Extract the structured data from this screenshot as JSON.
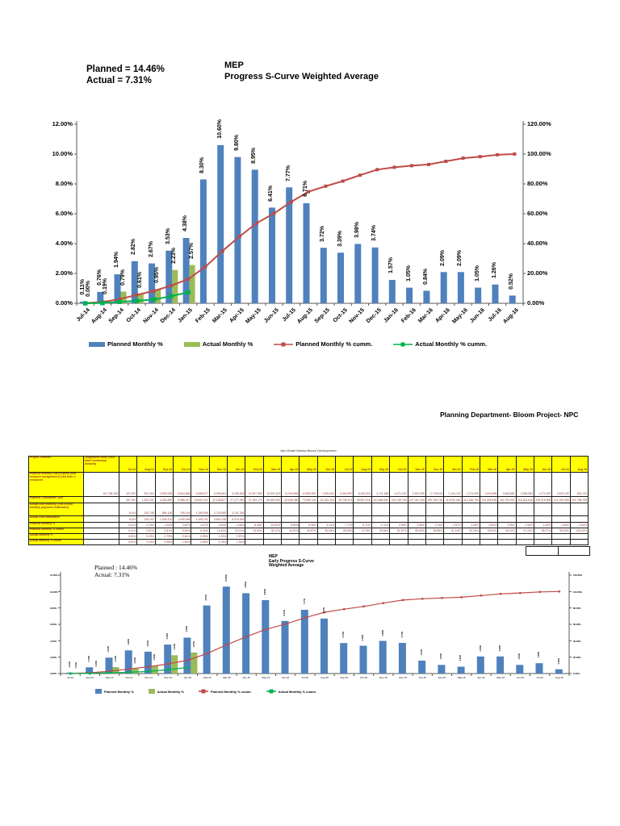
{
  "page": {
    "planned_note": "Planned = 14.46%",
    "actual_note": "Actual = 7.31%",
    "title_line1": "MEP",
    "title_line2": "Progress S-Curve Weighted Average",
    "department_note": "Planning Department- Bloom Project- NPC"
  },
  "colors": {
    "planned_bar": "#4F81BD",
    "actual_bar": "#9BBB59",
    "planned_cumm_line": "#BE4B48",
    "actual_cumm_line": "#00B050",
    "axis_line": "#595959",
    "table_header_bg": "#FFFF00",
    "table_text": "#953735"
  },
  "chart_data": [
    {
      "type": "bar",
      "combo": "bar+line",
      "title": "MEP Progress S-Curve Weighted Average",
      "annotation_planned": "Planned = 14.46%",
      "annotation_actual": "Actual = 7.31%",
      "categories": [
        "Jul-14",
        "Aug-14",
        "Sep-14",
        "Oct-14",
        "Nov-14",
        "Dec-14",
        "Jan-15",
        "Feb-15",
        "Mar-15",
        "Apr-15",
        "May-15",
        "Jun-15",
        "Jul-15",
        "Aug-15",
        "Sep-15",
        "Oct-15",
        "Nov-15",
        "Dec-15",
        "Jan-16",
        "Feb-16",
        "Mar-16",
        "Apr-16",
        "May-16",
        "Jun-16",
        "Jul-16",
        "Aug-16"
      ],
      "series": [
        {
          "name": "Planned Monthly %",
          "type": "bar",
          "axis": "left",
          "color": "#4F81BD",
          "values": [
            0.11,
            0.76,
            1.94,
            2.82,
            2.67,
            3.53,
            4.38,
            8.3,
            10.6,
            9.8,
            8.95,
            6.41,
            7.77,
            6.71,
            3.72,
            3.39,
            3.98,
            3.74,
            1.57,
            1.05,
            0.84,
            2.09,
            2.09,
            1.05,
            1.26,
            0.52
          ]
        },
        {
          "name": "Actual Monthly %",
          "type": "bar",
          "axis": "left",
          "color": "#9BBB59",
          "values": [
            0.0,
            0.19,
            0.79,
            0.61,
            0.95,
            2.23,
            2.57
          ]
        },
        {
          "name": "Planned Monthly % cumm.",
          "type": "line",
          "axis": "right",
          "color": "#BE4B48",
          "values": [
            0.11,
            0.87,
            2.81,
            5.63,
            8.3,
            11.84,
            16.21,
            24.52,
            35.12,
            44.92,
            53.87,
            60.28,
            68.05,
            74.76,
            78.48,
            81.87,
            85.84,
            89.58,
            91.15,
            92.2,
            93.04,
            95.13,
            97.22,
            98.27,
            99.53,
            100.0
          ]
        },
        {
          "name": "Actual Monthly % cumm.",
          "type": "line",
          "axis": "right",
          "color": "#00B050",
          "values": [
            0.0,
            0.19,
            0.98,
            1.6,
            2.55,
            4.78,
            7.34
          ]
        }
      ],
      "left_axis": {
        "min": 0,
        "max": 12,
        "step": 2,
        "tick_labels": [
          "0.00%",
          "2.00%",
          "4.00%",
          "6.00%",
          "8.00%",
          "10.00%",
          "12.00%"
        ]
      },
      "right_axis": {
        "min": 0,
        "max": 120,
        "step": 20,
        "tick_labels": [
          "0.00%",
          "20.00%",
          "40.00%",
          "60.00%",
          "80.00%",
          "100.00%",
          "120.00%"
        ]
      },
      "legend_position": "bottom",
      "grid": false,
      "bar_labels": true
    },
    {
      "type": "bar",
      "combo": "bar+line",
      "title_lines": [
        "MEP",
        "Early Progress S-Curve",
        "Weighted Average"
      ],
      "planned_note": "Planned : 14.46%",
      "actual_note": "Actual: 7.31%",
      "series_source": "same series as first chart",
      "left_axis": {
        "min": 0,
        "max": 12,
        "step": 2,
        "tick_labels": [
          "0.00%",
          "2.00%",
          "4.00%",
          "6.00%",
          "8.00%",
          "10.00%",
          "12.00%"
        ]
      },
      "right_axis": {
        "min": 0,
        "max": 120,
        "step": 20,
        "tick_labels": [
          "0.00%",
          "20.00%",
          "40.00%",
          "60.00%",
          "80.00%",
          "100.00%",
          "120.00%"
        ]
      },
      "legend_position": "bottom",
      "grid": false
    }
  ],
  "table": {
    "title": "Abu Dhabi Marina Bloom Development",
    "header": {
      "col1": "Project Timeline",
      "col2": "Judgement Units (Your total Contractual Amount)",
      "months": [
        "Jul-14",
        "Aug-14",
        "Sep-14",
        "Oct-14",
        "Nov-14",
        "Dec-14",
        "Jan-15",
        "Feb-15",
        "Mar-15",
        "Apr-15",
        "May-15",
        "Jun-15",
        "Jul-15",
        "Aug-15",
        "Sep-15",
        "Oct-15",
        "Nov-15",
        "Dec-15",
        "Jan-16",
        "Feb-16",
        "Mar-16",
        "Apr-16",
        "May-16",
        "Jun-16",
        "Jul-16",
        "Aug-16"
      ]
    },
    "rows": [
      {
        "label": "Planned Monthly Cost Expend your resource assignment (Cost) from e-resources",
        "units": "121,758,198",
        "values": [
          "437,967",
          "904,184",
          "2,939,538",
          "5,604,558",
          "5,955,677",
          "6,296,603",
          "5,338,563",
          "10,307,080",
          "12,907,423",
          "11,944,893",
          "10,893,657",
          "7,801,061",
          "9,464,897",
          "8,160,915",
          "2,711,468",
          "2,471,222",
          "2,901,399",
          "2,725,613",
          "1,144,742",
          "1,274,290",
          "1,019,698",
          "2,548,584",
          "2,548,584",
          "1,274,292",
          "1,529,150",
          "652,140"
        ]
      },
      {
        "label": "Planned Cumulative Cost",
        "units": "",
        "values": [
          "437,967",
          "1,342,151",
          "4,281,689",
          "9,886,247",
          "15,841,924",
          "22,138,527",
          "27,477,090",
          "37,784,170",
          "50,691,593",
          "62,636,486",
          "73,530,143",
          "81,331,204",
          "90,796,101",
          "98,957,016",
          "101,668,484",
          "104,139,706",
          "107,041,105",
          "109,766,718",
          "110,911,460",
          "112,185,750",
          "113,205,448",
          "115,754,032",
          "118,302,616",
          "119,576,908",
          "121,106,058",
          "121,758,198"
        ]
      },
      {
        "label": "Actual cost monthly (This is your monthly payment certificates)",
        "units": "",
        "values": [
          "5,414",
          "233,748",
          "965,148",
          "745,145",
          "1,159,696",
          "2,734,985",
          "3,131,394"
        ]
      },
      {
        "label": "Actual cost cumulative",
        "units": "",
        "values": [
          "5,414",
          "239,162",
          "1,204,310",
          "1,949,455",
          "3,109,151",
          "5,844,136",
          "8,975,530"
        ]
      },
      {
        "label": "Planned Monthly %",
        "units": "",
        "values": [
          "0.11%",
          "0.76%",
          "1.94%",
          "2.82%",
          "2.67%",
          "3.53%",
          "4.38%",
          "8.30%",
          "10.60%",
          "9.80%",
          "8.95%",
          "6.41%",
          "7.77%",
          "6.71%",
          "3.72%",
          "3.39%",
          "3.98%",
          "3.74%",
          "1.57%",
          "1.05%",
          "0.84%",
          "2.09%",
          "2.09%",
          "1.05%",
          "1.26%",
          "0.52%"
        ]
      },
      {
        "label": "Planned Monthly % cumm",
        "units": "",
        "values": [
          "0.11%",
          "0.87%",
          "2.81%",
          "5.63%",
          "8.30%",
          "11.84%",
          "16.21%",
          "24.52%",
          "35.12%",
          "44.92%",
          "53.87%",
          "60.28%",
          "68.05%",
          "74.76%",
          "78.48%",
          "81.87%",
          "85.84%",
          "89.58%",
          "91.15%",
          "92.20%",
          "93.04%",
          "95.13%",
          "97.22%",
          "98.27%",
          "99.53%",
          "100.00%"
        ]
      },
      {
        "label": "Actual Monthly %",
        "units": "",
        "values": [
          "0.00%",
          "0.19%",
          "0.79%",
          "0.61%",
          "0.95%",
          "2.23%",
          "2.57%"
        ]
      },
      {
        "label": "Actual Monthly % cumm",
        "units": "",
        "values": [
          "0.00%",
          "0.19%",
          "0.98%",
          "1.60%",
          "2.55%",
          "4.78%",
          "7.34%"
        ]
      }
    ]
  }
}
